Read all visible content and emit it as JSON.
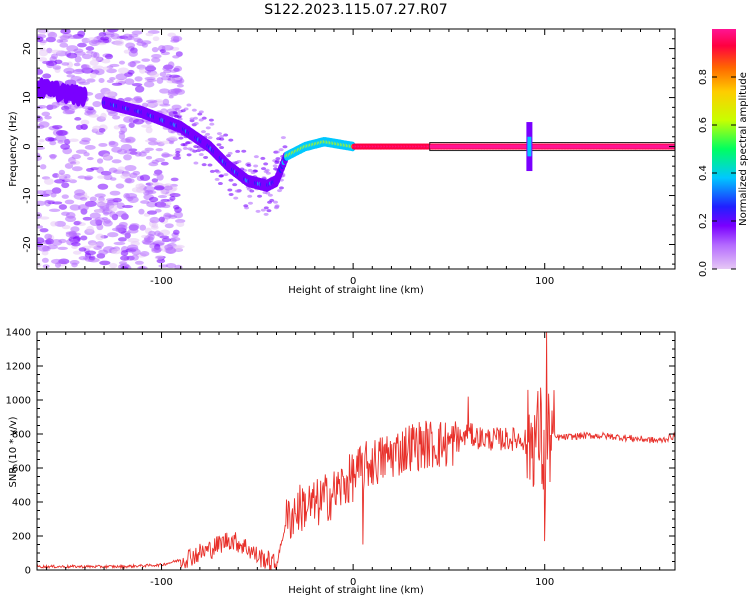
{
  "figure_title": "S122.2023.115.07.27.R07",
  "colors": {
    "snr_line": "#e8302a",
    "axis": "#000000",
    "colormap": [
      "#e6c8f5",
      "#b46aff",
      "#7a00ff",
      "#2020ff",
      "#00c8ff",
      "#00ff60",
      "#c8ff00",
      "#ffcc00",
      "#ff6600",
      "#ff0040",
      "#ff1493"
    ]
  },
  "chart_data": [
    {
      "type": "heatmap",
      "title": "S122.2023.115.07.27.R07",
      "xlabel": "Height of straight line (km)",
      "ylabel": "Frequency (Hz)",
      "xlim": [
        -165,
        168
      ],
      "ylim": [
        -25,
        24
      ],
      "x_ticks": [
        "-100",
        "0",
        "100"
      ],
      "y_ticks": [
        "20",
        "10",
        "0",
        "-10",
        "-20"
      ],
      "colorbar": {
        "label": "Normalized spectral amplitude",
        "range": [
          0.0,
          1.0
        ],
        "ticks": [
          "0.0",
          "0.2",
          "0.4",
          "0.6",
          "0.8"
        ]
      },
      "ridge": {
        "x": [
          -165,
          -150,
          -130,
          -110,
          -90,
          -75,
          -65,
          -55,
          -45,
          -40,
          -35,
          -25,
          -15,
          0,
          20,
          50,
          90,
          168
        ],
        "frequency": [
          12,
          11,
          9,
          7,
          4,
          0,
          -4,
          -7,
          -8,
          -7,
          -2,
          0,
          1,
          0,
          0,
          0,
          0,
          0
        ]
      }
    },
    {
      "type": "line",
      "xlabel": "Height of straight line (km)",
      "ylabel": "SNR (10 * v/v)",
      "xlim": [
        -165,
        168
      ],
      "ylim": [
        0,
        1400
      ],
      "x_ticks": [
        "-100",
        "0",
        "100"
      ],
      "y_ticks": [
        "0",
        "200",
        "400",
        "600",
        "800",
        "1000",
        "1200",
        "1400"
      ],
      "series": [
        {
          "x": [
            -165,
            -140,
            -120,
            -100,
            -90,
            -80,
            -75,
            -70,
            -65,
            -60,
            -55,
            -50,
            -45,
            -40,
            -35,
            -30,
            -25,
            -20,
            -15,
            -10,
            -5,
            0,
            5,
            10,
            15,
            20,
            25,
            30,
            40,
            50,
            55,
            60,
            65,
            70,
            80,
            90,
            95,
            98,
            100,
            102,
            110,
            120,
            130,
            140,
            150,
            160,
            168
          ],
          "y": [
            20,
            20,
            20,
            30,
            60,
            100,
            120,
            150,
            180,
            160,
            130,
            80,
            60,
            30,
            280,
            350,
            380,
            380,
            420,
            450,
            500,
            550,
            600,
            630,
            650,
            680,
            700,
            730,
            740,
            740,
            760,
            800,
            780,
            770,
            770,
            770,
            780,
            800,
            560,
            780,
            780,
            790,
            790,
            780,
            770,
            760,
            790
          ]
        }
      ],
      "annotations": {
        "spikes": [
          {
            "x": 101,
            "y": 1400
          },
          {
            "x": 60,
            "y": 1020
          },
          {
            "x": 5,
            "y": 150
          },
          {
            "x": 100,
            "y": 170
          }
        ]
      }
    }
  ]
}
